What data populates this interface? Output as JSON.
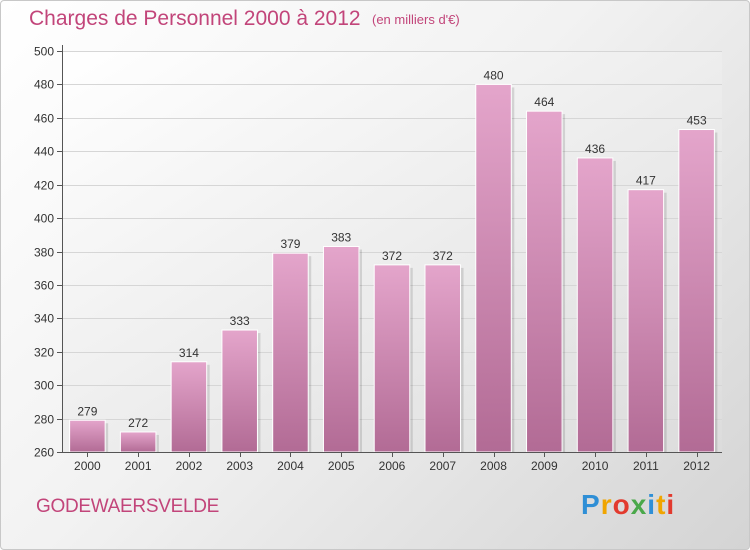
{
  "header": {
    "title": "Charges de Personnel 2000 à 2012",
    "subtitle": "(en milliers d'€)"
  },
  "footer": {
    "commune": "GODEWAERSVELDE",
    "logo_letters": [
      "P",
      "r",
      "o",
      "x",
      "i",
      "t",
      "i"
    ],
    "logo_colors": [
      "#2f8fd6",
      "#f0a500",
      "#e23a2e",
      "#4aa84a",
      "#2f8fd6",
      "#f0a500",
      "#e23a2e"
    ]
  },
  "colors": {
    "bar_top": "#e4a5cb",
    "bar_bottom": "#b26b95",
    "text_accent": "#c2457a"
  },
  "chart_data": {
    "type": "bar",
    "title": "Charges de Personnel 2000 à 2012",
    "subtitle": "(en milliers d'€)",
    "categories": [
      "2000",
      "2001",
      "2002",
      "2003",
      "2004",
      "2005",
      "2006",
      "2007",
      "2008",
      "2009",
      "2010",
      "2011",
      "2012"
    ],
    "values": [
      279,
      272,
      314,
      333,
      379,
      383,
      372,
      372,
      480,
      464,
      436,
      417,
      453
    ],
    "ylim": [
      260,
      500
    ],
    "yticks": [
      260,
      280,
      300,
      320,
      340,
      360,
      380,
      400,
      420,
      440,
      460,
      480,
      500
    ],
    "grid": true,
    "xlabel": "",
    "ylabel": ""
  }
}
